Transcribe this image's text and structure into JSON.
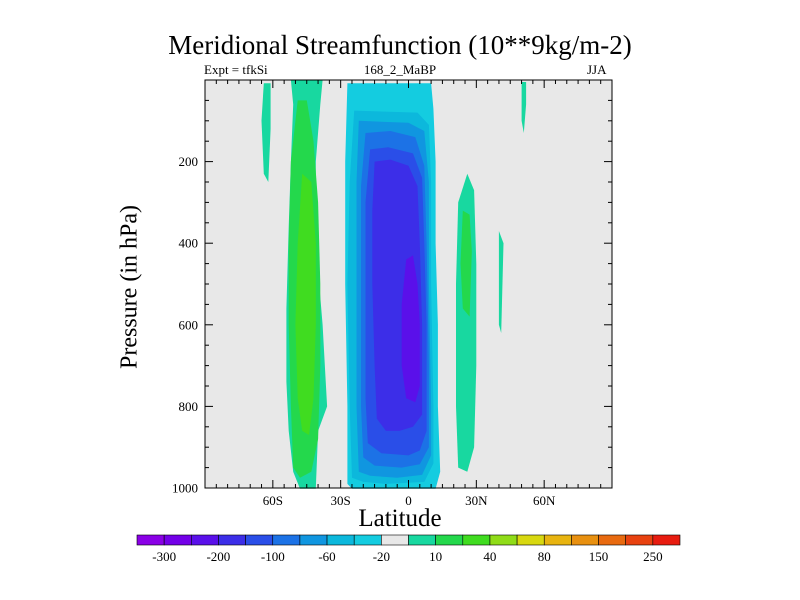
{
  "chart_data": {
    "type": "heatmap",
    "title": "Meridional Streamfunction (10**9kg/m-2)",
    "subtitle_left": "Expt = tfkSi",
    "subtitle_center": "168_2_MaBP",
    "subtitle_right": "JJA",
    "xlabel": "Latitude",
    "ylabel": "Pressure (in hPa)",
    "xlim": [
      -90,
      90
    ],
    "ylim": [
      1000,
      0
    ],
    "x_ticks": [
      {
        "value": -60,
        "label": "60S"
      },
      {
        "value": -30,
        "label": "30S"
      },
      {
        "value": 0,
        "label": "0"
      },
      {
        "value": 30,
        "label": "30N"
      },
      {
        "value": 60,
        "label": "60N"
      }
    ],
    "y_ticks": [
      {
        "value": 200,
        "label": "200"
      },
      {
        "value": 400,
        "label": "400"
      },
      {
        "value": 600,
        "label": "600"
      },
      {
        "value": 800,
        "label": "800"
      },
      {
        "value": 1000,
        "label": "1000"
      }
    ],
    "colorbar": {
      "colors": [
        "#8a00e6",
        "#7300e8",
        "#5a10ea",
        "#3c2ee8",
        "#2a4ee8",
        "#1c72e6",
        "#1096e0",
        "#0cb8dc",
        "#14cce0",
        "#e8e8e8",
        "#18d8a0",
        "#24d84c",
        "#40dc20",
        "#90dc18",
        "#d8d810",
        "#e8b410",
        "#e89010",
        "#e86a10",
        "#e84210",
        "#e81c10"
      ],
      "labels": [
        {
          "boundary": 1,
          "text": "-300"
        },
        {
          "boundary": 3,
          "text": "-200"
        },
        {
          "boundary": 5,
          "text": "-100"
        },
        {
          "boundary": 7,
          "text": "-60"
        },
        {
          "boundary": 9,
          "text": "-20"
        },
        {
          "boundary": 11,
          "text": "10"
        },
        {
          "boundary": 13,
          "text": "40"
        },
        {
          "boundary": 15,
          "text": "80"
        },
        {
          "boundary": 17,
          "text": "150"
        },
        {
          "boundary": 19,
          "text": "250"
        }
      ]
    },
    "regions": [
      {
        "name": "sh-cell",
        "color": "#18d8a0",
        "points": [
          [
            -40,
            860
          ],
          [
            -41,
            1002
          ],
          [
            -48,
            1002
          ],
          [
            -51,
            960
          ],
          [
            -53,
            860
          ],
          [
            -54,
            740
          ],
          [
            -54,
            560
          ],
          [
            -53,
            360
          ],
          [
            -52,
            200
          ],
          [
            -51,
            60
          ],
          [
            -52,
            0
          ],
          [
            -38,
            0
          ],
          [
            -39,
            60
          ],
          [
            -41,
            200
          ],
          [
            -41,
            400
          ],
          [
            -38,
            600
          ],
          [
            -36,
            800
          ]
        ]
      },
      {
        "name": "sh-cell",
        "color": "#18d8a0",
        "points": [
          [
            -64,
            8
          ],
          [
            -65,
            100
          ],
          [
            -64,
            230
          ],
          [
            -62,
            250
          ],
          [
            -61,
            120
          ],
          [
            -61,
            8
          ]
        ]
      },
      {
        "name": "sh-cell",
        "color": "#24d84c",
        "points": [
          [
            -49,
            50
          ],
          [
            -52,
            200
          ],
          [
            -53,
            400
          ],
          [
            -53,
            600
          ],
          [
            -52,
            800
          ],
          [
            -51,
            950
          ],
          [
            -48,
            975
          ],
          [
            -43,
            960
          ],
          [
            -40,
            880
          ],
          [
            -39,
            700
          ],
          [
            -39,
            500
          ],
          [
            -40,
            300
          ],
          [
            -42,
            150
          ],
          [
            -45,
            50
          ]
        ]
      },
      {
        "name": "sh-cell",
        "color": "#40dc20",
        "points": [
          [
            -47,
            230
          ],
          [
            -49,
            400
          ],
          [
            -50,
            600
          ],
          [
            -49,
            780
          ],
          [
            -47,
            860
          ],
          [
            -44,
            870
          ],
          [
            -42,
            780
          ],
          [
            -41,
            600
          ],
          [
            -41,
            400
          ],
          [
            -43,
            250
          ]
        ]
      },
      {
        "name": "main-cell",
        "color": "#14cce0",
        "points": [
          [
            -27,
            8
          ],
          [
            -28,
            200
          ],
          [
            -28,
            500
          ],
          [
            -27,
            800
          ],
          [
            -27,
            990
          ],
          [
            -25,
            1002
          ],
          [
            12,
            1002
          ],
          [
            14,
            960
          ],
          [
            13,
            800
          ],
          [
            13,
            600
          ],
          [
            12,
            400
          ],
          [
            12,
            200
          ],
          [
            11,
            70
          ],
          [
            10,
            8
          ]
        ]
      },
      {
        "name": "main-cell",
        "color": "#0cb8dc",
        "points": [
          [
            -24,
            75
          ],
          [
            -26,
            250
          ],
          [
            -27,
            500
          ],
          [
            -26,
            800
          ],
          [
            -25,
            975
          ],
          [
            -20,
            985
          ],
          [
            -10,
            990
          ],
          [
            7,
            985
          ],
          [
            11,
            940
          ],
          [
            11,
            800
          ],
          [
            10,
            500
          ],
          [
            10,
            250
          ],
          [
            9,
            110
          ],
          [
            4,
            80
          ]
        ]
      },
      {
        "name": "main-cell",
        "color": "#1096e0",
        "points": [
          [
            -22,
            100
          ],
          [
            -23,
            250
          ],
          [
            -23,
            500
          ],
          [
            -23,
            800
          ],
          [
            -22,
            960
          ],
          [
            -17,
            970
          ],
          [
            -5,
            975
          ],
          [
            6,
            968
          ],
          [
            10,
            920
          ],
          [
            10,
            800
          ],
          [
            9,
            500
          ],
          [
            9,
            250
          ],
          [
            7,
            125
          ],
          [
            0,
            105
          ]
        ]
      },
      {
        "name": "main-cell",
        "color": "#1c72e6",
        "points": [
          [
            -19,
            130
          ],
          [
            -21,
            260
          ],
          [
            -21,
            500
          ],
          [
            -21,
            800
          ],
          [
            -20,
            925
          ],
          [
            -15,
            945
          ],
          [
            -3,
            950
          ],
          [
            5,
            942
          ],
          [
            9,
            900
          ],
          [
            9,
            700
          ],
          [
            8,
            400
          ],
          [
            7,
            210
          ],
          [
            3,
            140
          ],
          [
            -8,
            125
          ]
        ]
      },
      {
        "name": "main-cell",
        "color": "#2a4ee8",
        "points": [
          [
            -17,
            170
          ],
          [
            -19,
            300
          ],
          [
            -19,
            500
          ],
          [
            -19,
            780
          ],
          [
            -18,
            890
          ],
          [
            -12,
            915
          ],
          [
            0,
            920
          ],
          [
            5,
            908
          ],
          [
            8,
            860
          ],
          [
            8,
            600
          ],
          [
            7,
            400
          ],
          [
            6,
            240
          ],
          [
            2,
            180
          ],
          [
            -9,
            165
          ]
        ]
      },
      {
        "name": "main-cell",
        "color": "#3c2ee8",
        "points": [
          [
            -15,
            200
          ],
          [
            -16,
            320
          ],
          [
            -16,
            500
          ],
          [
            -15,
            700
          ],
          [
            -14,
            830
          ],
          [
            -10,
            860
          ],
          [
            -4,
            860
          ],
          [
            2,
            850
          ],
          [
            6,
            820
          ],
          [
            6,
            600
          ],
          [
            5,
            400
          ],
          [
            4,
            260
          ],
          [
            0,
            210
          ],
          [
            -8,
            195
          ]
        ]
      },
      {
        "name": "main-cell",
        "color": "#5a10ea",
        "points": [
          [
            -1,
            440
          ],
          [
            -3,
            550
          ],
          [
            -3,
            700
          ],
          [
            -1,
            780
          ],
          [
            3,
            790
          ],
          [
            5,
            750
          ],
          [
            5,
            600
          ],
          [
            4,
            500
          ],
          [
            2,
            430
          ]
        ]
      },
      {
        "name": "nh-cell",
        "color": "#18d8a0",
        "points": [
          [
            22,
            300
          ],
          [
            21,
            500
          ],
          [
            21,
            800
          ],
          [
            22,
            950
          ],
          [
            26,
            960
          ],
          [
            29,
            900
          ],
          [
            30,
            700
          ],
          [
            30,
            450
          ],
          [
            29,
            270
          ],
          [
            26,
            230
          ]
        ]
      },
      {
        "name": "nh-cell",
        "color": "#24d84c",
        "points": [
          [
            24,
            320
          ],
          [
            23,
            450
          ],
          [
            24,
            560
          ],
          [
            27,
            580
          ],
          [
            28,
            420
          ],
          [
            27,
            330
          ]
        ]
      },
      {
        "name": "nh-cell",
        "color": "#18d8a0",
        "points": [
          [
            40,
            370
          ],
          [
            40,
            600
          ],
          [
            41,
            620
          ],
          [
            42,
            400
          ]
        ]
      },
      {
        "name": "nh-cell",
        "color": "#18d8a0",
        "points": [
          [
            50,
            5
          ],
          [
            50,
            100
          ],
          [
            51,
            130
          ],
          [
            52,
            60
          ],
          [
            52,
            5
          ]
        ]
      }
    ]
  }
}
